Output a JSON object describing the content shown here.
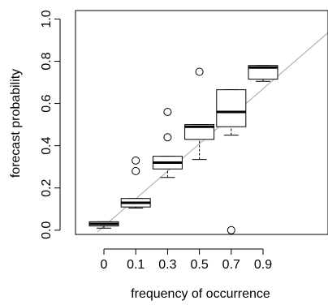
{
  "chart_data": {
    "type": "box",
    "xlabel": "frequency of occurrence",
    "ylabel": "forecast probability",
    "categories": [
      "0",
      "0.1",
      "0.3",
      "0.5",
      "0.7",
      "0.9"
    ],
    "ylim": [
      -0.02,
      1.04
    ],
    "yticks": [
      "0.0",
      "0.2",
      "0.4",
      "0.6",
      "0.8",
      "1.0"
    ],
    "grid": false,
    "reference_line": {
      "from": [
        0,
        0
      ],
      "to": [
        1,
        1
      ],
      "color": "#b3b3b3"
    },
    "boxes": [
      {
        "category": "0",
        "whisker_low": 0.01,
        "q1": 0.02,
        "median": 0.03,
        "q3": 0.04,
        "whisker_high": 0.04,
        "outliers": []
      },
      {
        "category": "0.1",
        "whisker_low": 0.105,
        "q1": 0.11,
        "median": 0.13,
        "q3": 0.15,
        "whisker_high": 0.15,
        "outliers": [
          0.28,
          0.33
        ]
      },
      {
        "category": "0.3",
        "whisker_low": 0.25,
        "q1": 0.29,
        "median": 0.32,
        "q3": 0.35,
        "whisker_high": 0.35,
        "outliers": [
          0.44,
          0.56
        ]
      },
      {
        "category": "0.5",
        "whisker_low": 0.335,
        "q1": 0.43,
        "median": 0.49,
        "q3": 0.5,
        "whisker_high": 0.5,
        "outliers": [
          0.75
        ]
      },
      {
        "category": "0.7",
        "whisker_low": 0.45,
        "q1": 0.49,
        "median": 0.56,
        "q3": 0.665,
        "whisker_high": 0.665,
        "outliers": [
          0.0
        ]
      },
      {
        "category": "0.9",
        "whisker_low": 0.705,
        "q1": 0.715,
        "median": 0.77,
        "q3": 0.78,
        "whisker_high": 0.78,
        "outliers": []
      }
    ]
  }
}
